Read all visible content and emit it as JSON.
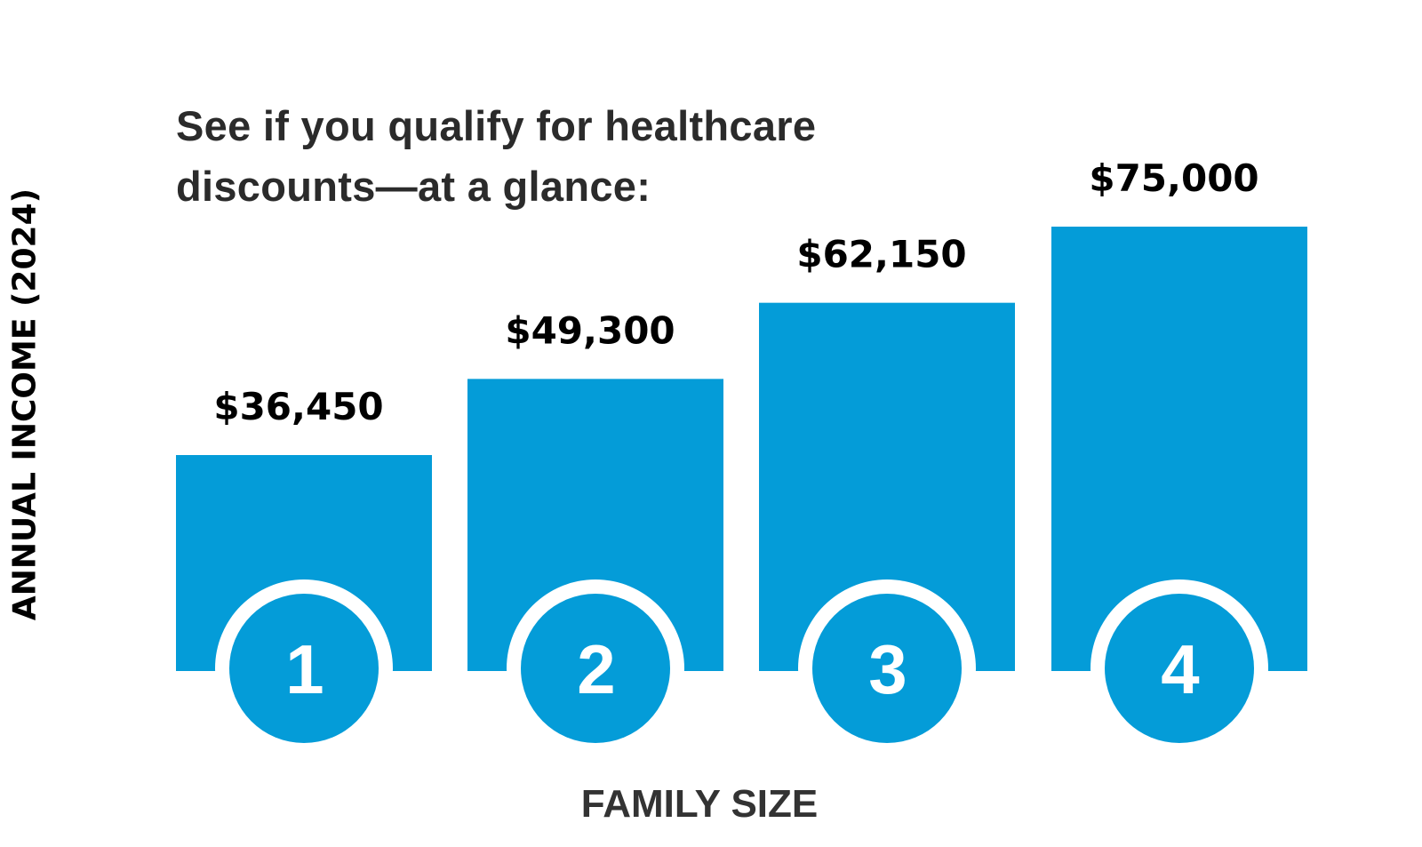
{
  "chart_data": {
    "type": "bar",
    "title": "See if you qualify for healthcare discounts—at a glance:",
    "title_lines": [
      "See if you qualify for healthcare",
      "discounts—at a glance:"
    ],
    "xlabel": "FAMILY SIZE",
    "ylabel": "ANNUAL INCOME (2024)",
    "categories": [
      "1",
      "2",
      "3",
      "4"
    ],
    "values": [
      36450,
      49300,
      62150,
      75000
    ],
    "data_labels": [
      "$36,450",
      "$49,300",
      "$62,150",
      "$75,000"
    ],
    "ylim": [
      0,
      75000
    ],
    "grid": false,
    "legend": "none",
    "bar_color": "#049cd8"
  }
}
